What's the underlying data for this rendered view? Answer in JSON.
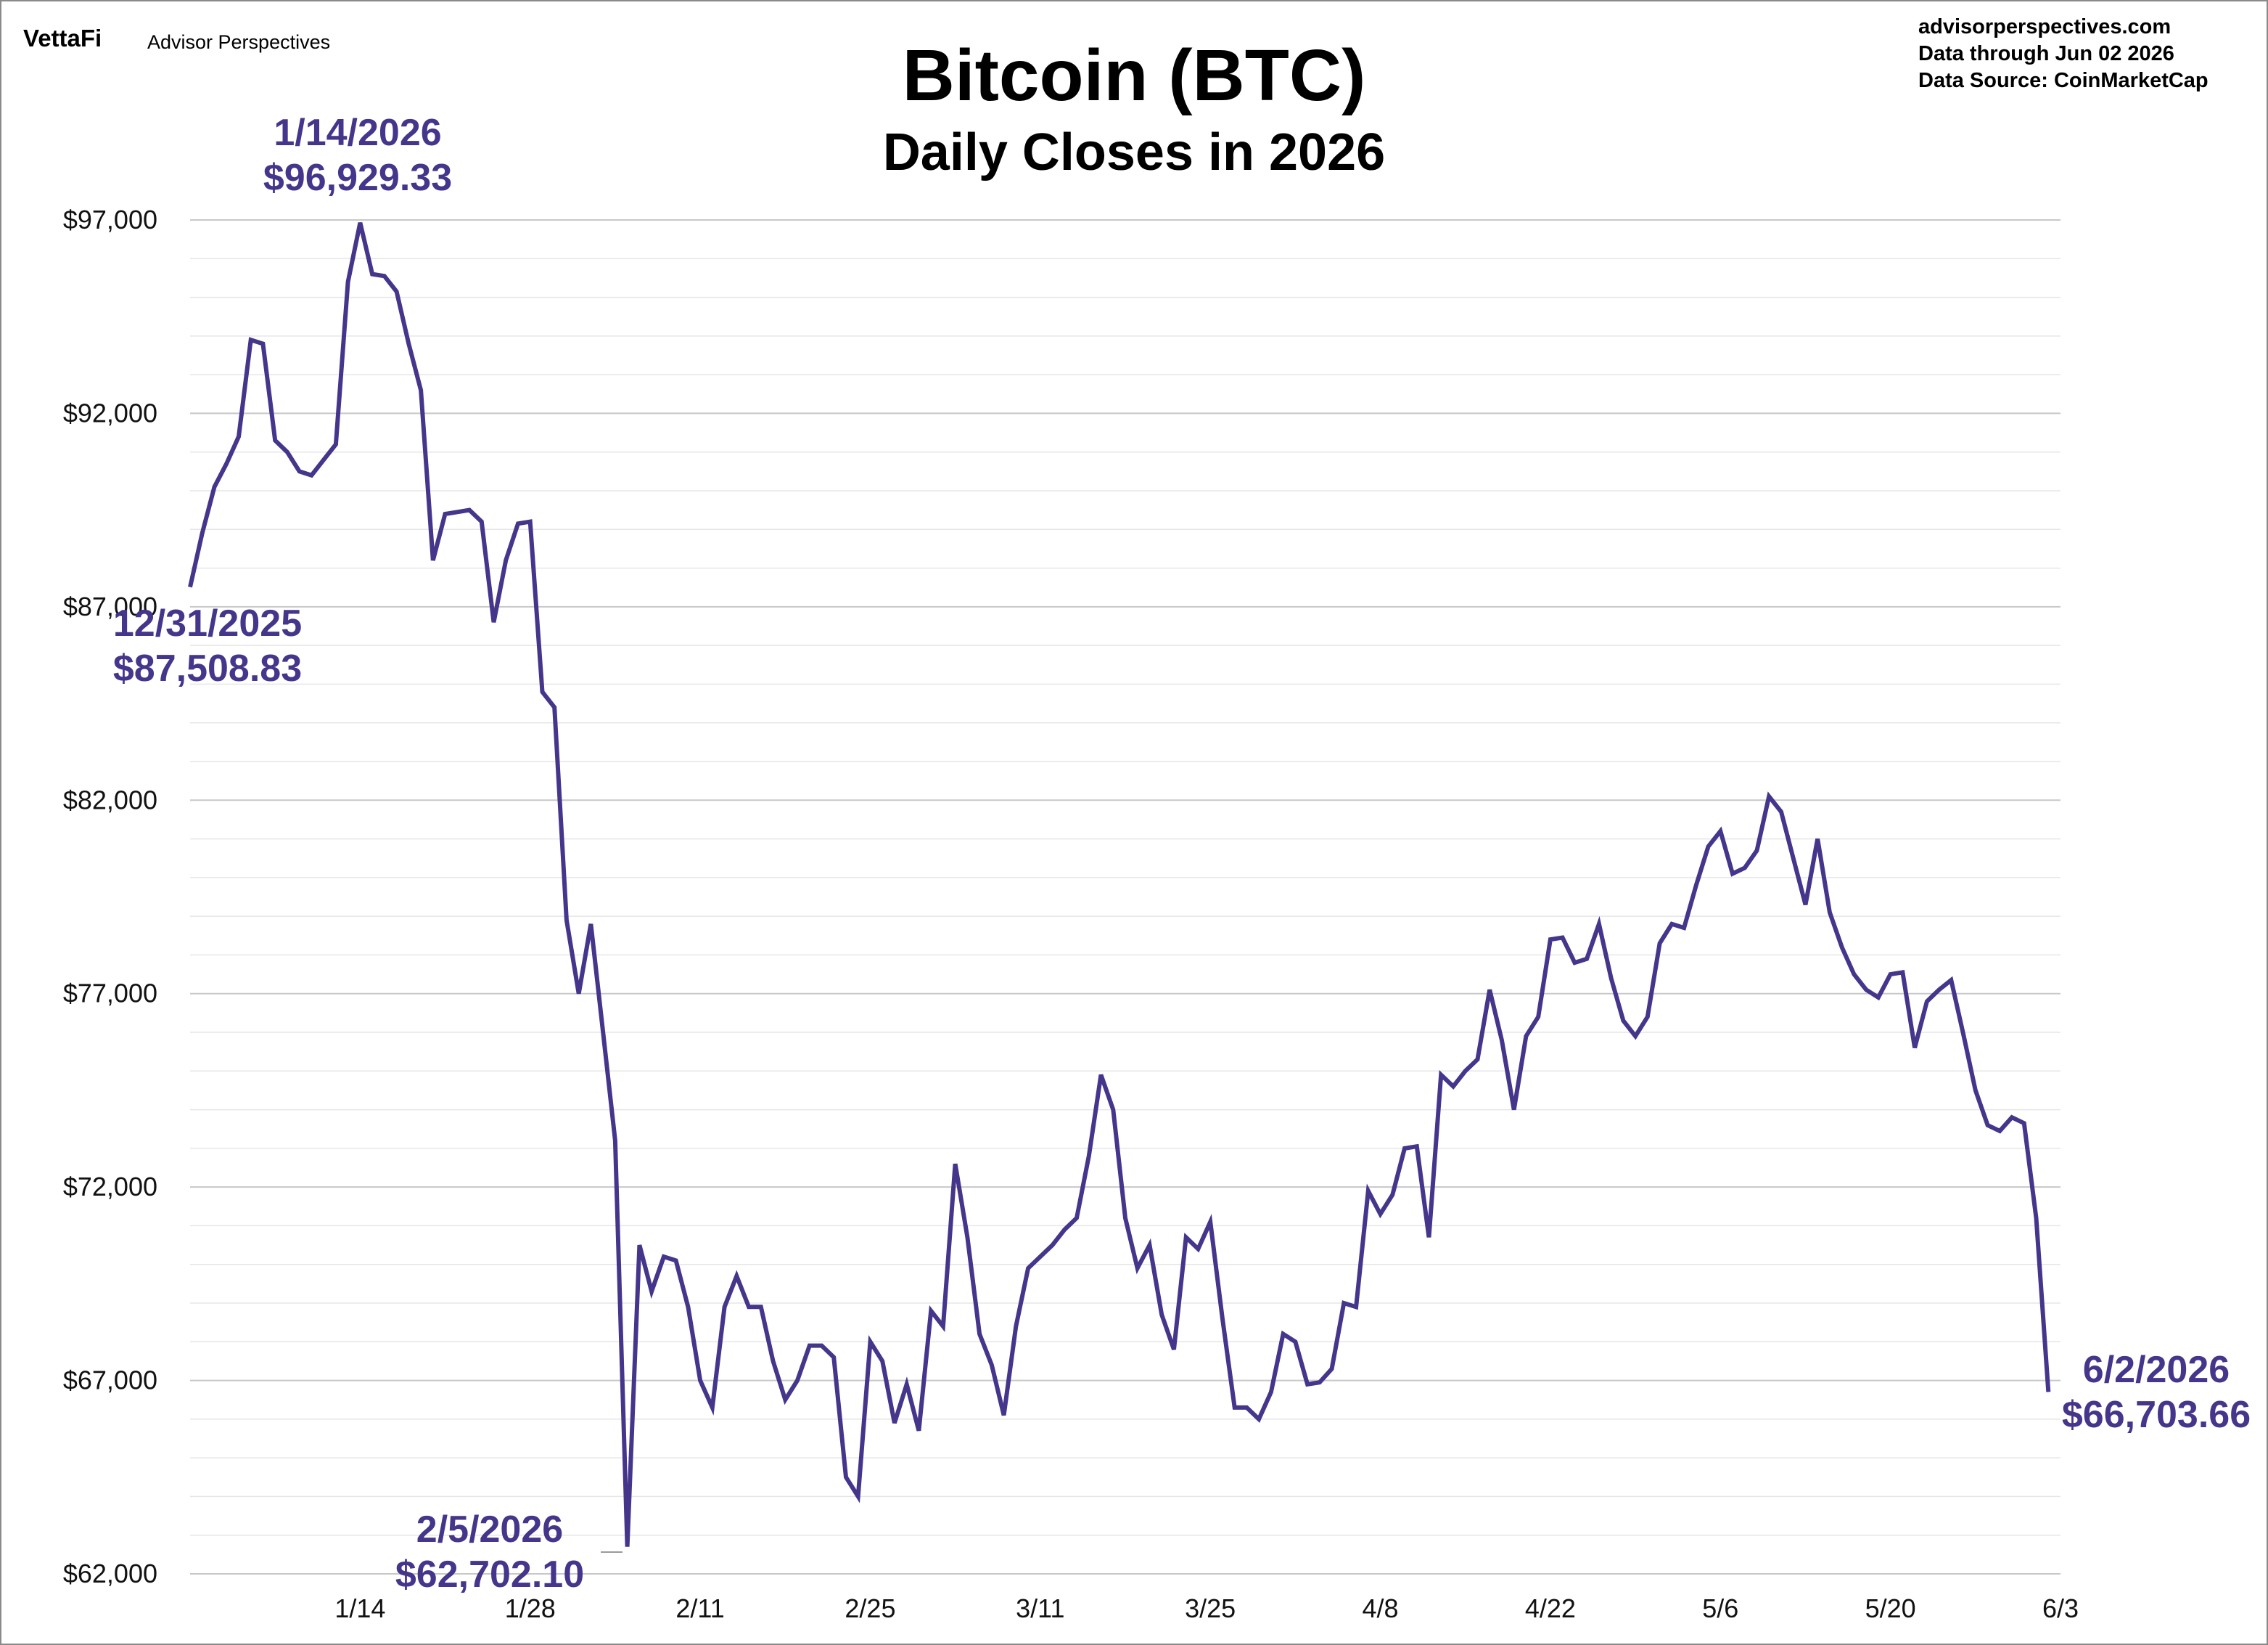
{
  "branding": {
    "logo_text": "VettaFi",
    "name": "Advisor Perspectives"
  },
  "source_info": {
    "website": "advisorperspectives.com",
    "data_through": "Data through  Jun 02 2026",
    "data_source": "Data Source:  CoinMarketCap"
  },
  "colors": {
    "series": "#45358b",
    "callout_text": "#45358b",
    "grid_major": "#c8c8c8",
    "grid_minor": "#e6e6e6",
    "frame": "#8a8a8a"
  },
  "chart_data": {
    "type": "line",
    "title": "Bitcoin (BTC)",
    "subtitle": "Daily Closes in 2026",
    "xlabel": "",
    "ylabel": "",
    "ylim": [
      62000,
      97000
    ],
    "xlim": [
      "2025-12-31",
      "2026-06-03"
    ],
    "grid": true,
    "y_ticks": [
      {
        "value": 97000,
        "label": "$97,000"
      },
      {
        "value": 92000,
        "label": "$92,000"
      },
      {
        "value": 87000,
        "label": "$87,000"
      },
      {
        "value": 82000,
        "label": "$82,000"
      },
      {
        "value": 77000,
        "label": "$77,000"
      },
      {
        "value": 72000,
        "label": "$72,000"
      },
      {
        "value": 67000,
        "label": "$67,000"
      },
      {
        "value": 62000,
        "label": "$62,000"
      }
    ],
    "x_ticks": [
      {
        "date": "2026-01-14",
        "label": "1/14"
      },
      {
        "date": "2026-01-28",
        "label": "1/28"
      },
      {
        "date": "2026-02-11",
        "label": "2/11"
      },
      {
        "date": "2026-02-25",
        "label": "2/25"
      },
      {
        "date": "2026-03-11",
        "label": "3/11"
      },
      {
        "date": "2026-03-25",
        "label": "3/25"
      },
      {
        "date": "2026-04-08",
        "label": "4/8"
      },
      {
        "date": "2026-04-22",
        "label": "4/22"
      },
      {
        "date": "2026-05-06",
        "label": "5/6"
      },
      {
        "date": "2026-05-20",
        "label": "5/20"
      },
      {
        "date": "2026-06-03",
        "label": "6/3"
      }
    ],
    "series": [
      {
        "dates": [
          "2025-12-31",
          "2026-01-01",
          "2026-01-02",
          "2026-01-03",
          "2026-01-04",
          "2026-01-05",
          "2026-01-06",
          "2026-01-07",
          "2026-01-08",
          "2026-01-09",
          "2026-01-10",
          "2026-01-11",
          "2026-01-12",
          "2026-01-13",
          "2026-01-14",
          "2026-01-15",
          "2026-01-16",
          "2026-01-17",
          "2026-01-18",
          "2026-01-19",
          "2026-01-20",
          "2026-01-21",
          "2026-01-22",
          "2026-01-23",
          "2026-01-24",
          "2026-01-25",
          "2026-01-26",
          "2026-01-27",
          "2026-01-28",
          "2026-01-29",
          "2026-01-30",
          "2026-01-31",
          "2026-02-01",
          "2026-02-02",
          "2026-02-03",
          "2026-02-04",
          "2026-02-05",
          "2026-02-06",
          "2026-02-07",
          "2026-02-08",
          "2026-02-09",
          "2026-02-10",
          "2026-02-11",
          "2026-02-12",
          "2026-02-13",
          "2026-02-14",
          "2026-02-15",
          "2026-02-16",
          "2026-02-17",
          "2026-02-18",
          "2026-02-19",
          "2026-02-20",
          "2026-02-21",
          "2026-02-22",
          "2026-02-23",
          "2026-02-24",
          "2026-02-25",
          "2026-02-26",
          "2026-02-27",
          "2026-02-28",
          "2026-03-01",
          "2026-03-02",
          "2026-03-03",
          "2026-03-04",
          "2026-03-05",
          "2026-03-06",
          "2026-03-07",
          "2026-03-08",
          "2026-03-09",
          "2026-03-10",
          "2026-03-11",
          "2026-03-12",
          "2026-03-13",
          "2026-03-14",
          "2026-03-15",
          "2026-03-16",
          "2026-03-17",
          "2026-03-18",
          "2026-03-19",
          "2026-03-20",
          "2026-03-21",
          "2026-03-22",
          "2026-03-23",
          "2026-03-24",
          "2026-03-25",
          "2026-03-26",
          "2026-03-27",
          "2026-03-28",
          "2026-03-29",
          "2026-03-30",
          "2026-03-31",
          "2026-04-01",
          "2026-04-02",
          "2026-04-03",
          "2026-04-04",
          "2026-04-05",
          "2026-04-06",
          "2026-04-07",
          "2026-04-08",
          "2026-04-09",
          "2026-04-10",
          "2026-04-11",
          "2026-04-12",
          "2026-04-13",
          "2026-04-14",
          "2026-04-15",
          "2026-04-16",
          "2026-04-17",
          "2026-04-18",
          "2026-04-19",
          "2026-04-20",
          "2026-04-21",
          "2026-04-22",
          "2026-04-23",
          "2026-04-24",
          "2026-04-25",
          "2026-04-26",
          "2026-04-27",
          "2026-04-28",
          "2026-04-29",
          "2026-04-30",
          "2026-05-01",
          "2026-05-02",
          "2026-05-03",
          "2026-05-04",
          "2026-05-05",
          "2026-05-06",
          "2026-05-07",
          "2026-05-08",
          "2026-05-09",
          "2026-05-10",
          "2026-05-11",
          "2026-05-12",
          "2026-05-13",
          "2026-05-14",
          "2026-05-15",
          "2026-05-16",
          "2026-05-17",
          "2026-05-18",
          "2026-05-19",
          "2026-05-20",
          "2026-05-21",
          "2026-05-22",
          "2026-05-23",
          "2026-05-24",
          "2026-05-25",
          "2026-05-26",
          "2026-05-27",
          "2026-05-28",
          "2026-05-29",
          "2026-05-30",
          "2026-05-31",
          "2026-06-01",
          "2026-06-02"
        ],
        "values": [
          87508.83,
          88900,
          90100,
          90700,
          91400,
          93900,
          93800,
          91300,
          91000,
          90500,
          90400,
          90800,
          91200,
          95400,
          96929.33,
          95600,
          95550,
          95150,
          93800,
          92600,
          88200,
          89400,
          89450,
          89500,
          89200,
          86600,
          88200,
          89150,
          89200,
          84800,
          84400,
          78900,
          77000,
          78800,
          76000,
          73200,
          62702.1,
          70500,
          69300,
          70200,
          70100,
          68900,
          67000,
          66300,
          68900,
          69700,
          68900,
          68900,
          67500,
          66500,
          67000,
          67900,
          67900,
          67600,
          64500,
          64000,
          68000,
          67500,
          65900,
          66900,
          65700,
          68800,
          68400,
          72600,
          70700,
          68200,
          67400,
          66100,
          68400,
          69900,
          70200,
          70500,
          70900,
          71200,
          72800,
          74900,
          74000,
          71200,
          69900,
          70500,
          68700,
          67800,
          70700,
          70400,
          71100,
          68600,
          66300,
          66300,
          66000,
          66700,
          68200,
          68000,
          66900,
          66950,
          67300,
          69000,
          68900,
          71900,
          71300,
          71800,
          73000,
          73050,
          70700,
          74900,
          74600,
          75000,
          75300,
          77100,
          75800,
          74000,
          75900,
          76400,
          78400,
          78450,
          77800,
          77900,
          78800,
          77400,
          76300,
          75900,
          76400,
          78300,
          78800,
          78700,
          79800,
          80800,
          81200,
          80100,
          80250,
          80700,
          82100,
          81700,
          80500,
          79300,
          81000,
          79100,
          78200,
          77500,
          77100,
          76900,
          77500,
          77550,
          75600,
          76800,
          77100,
          77350,
          75950,
          74500,
          73600,
          73450,
          73800,
          73650,
          71200,
          66703.66
        ]
      }
    ],
    "annotations": [
      {
        "date_label": "1/14/2026",
        "value_label": "$96,929.33"
      },
      {
        "date_label": "12/31/2025",
        "value_label": "$87,508.83"
      },
      {
        "date_label": "2/5/2026",
        "value_label": "$62,702.10"
      },
      {
        "date_label": "6/2/2026",
        "value_label": "$66,703.66"
      }
    ]
  }
}
